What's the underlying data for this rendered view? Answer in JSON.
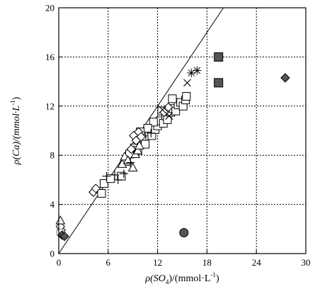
{
  "chart_data": {
    "type": "scatter",
    "title": "",
    "xlabel": {
      "pre": "ρ(SO",
      "sub": "4",
      "post": ")/(mmol·L",
      "sup": "-1",
      "end": ")"
    },
    "ylabel": {
      "pre": "ρ(Ca)/(mmol·L",
      "sup": "-1",
      "end": ")"
    },
    "xlim": [
      0,
      30
    ],
    "ylim": [
      0,
      20
    ],
    "xticks": [
      "0",
      "6",
      "12",
      "18",
      "24",
      "30"
    ],
    "yticks": [
      "0",
      "4",
      "8",
      "12",
      "16",
      "20"
    ],
    "grid": {
      "vertical": [
        6,
        12,
        18,
        24
      ],
      "horizontal": [
        4,
        8,
        12,
        16
      ],
      "style": "dotted"
    },
    "reference_line": {
      "x1": 0,
      "y1": 0,
      "x2": 20,
      "y2": 20
    },
    "marker_colors": {
      "open": "#ffffff",
      "filled": "#555555",
      "line": "#000000",
      "light": "#888888"
    },
    "series": [
      {
        "marker": "square-open",
        "points": [
          [
            5.2,
            4.9
          ],
          [
            5.5,
            5.7
          ],
          [
            6.3,
            6.1
          ],
          [
            7.6,
            6.3
          ],
          [
            8.2,
            7.5
          ],
          [
            8.6,
            8.1
          ],
          [
            9.2,
            8.6
          ],
          [
            9.6,
            8.4
          ],
          [
            10.1,
            9.4
          ],
          [
            10.5,
            8.9
          ],
          [
            11.0,
            9.9
          ],
          [
            11.3,
            9.6
          ],
          [
            11.7,
            10.1
          ],
          [
            12.0,
            10.4
          ],
          [
            12.3,
            10.8
          ],
          [
            12.7,
            10.6
          ],
          [
            13.0,
            11.2
          ],
          [
            13.2,
            10.9
          ],
          [
            13.6,
            11.5
          ],
          [
            13.9,
            11.8
          ],
          [
            14.2,
            11.6
          ],
          [
            14.5,
            12.1
          ],
          [
            14.8,
            12.3
          ],
          [
            15.1,
            12.0
          ],
          [
            15.4,
            12.5
          ],
          [
            13.8,
            12.6
          ],
          [
            15.5,
            12.8
          ],
          [
            12.5,
            11.6
          ],
          [
            11.5,
            10.7
          ],
          [
            10.8,
            10.2
          ],
          [
            9.9,
            9.9
          ]
        ]
      },
      {
        "marker": "diamond-open",
        "points": [
          [
            4.2,
            5.0
          ],
          [
            4.5,
            5.3
          ],
          [
            8.8,
            8.5
          ],
          [
            9.1,
            9.6
          ],
          [
            9.4,
            9.2
          ],
          [
            9.7,
            9.9
          ],
          [
            10.0,
            9.5
          ],
          [
            12.8,
            11.5
          ],
          [
            13.3,
            11.9
          ],
          [
            0.3,
            1.9
          ],
          [
            0.2,
            2.2
          ]
        ]
      },
      {
        "marker": "triangle-open",
        "points": [
          [
            7.7,
            7.3
          ],
          [
            8.0,
            7.9
          ],
          [
            8.4,
            7.6
          ],
          [
            9.0,
            7.0
          ],
          [
            9.3,
            8.1
          ],
          [
            9.6,
            8.4
          ],
          [
            9.8,
            8.8
          ],
          [
            0.2,
            2.7
          ]
        ]
      },
      {
        "marker": "plus",
        "points": [
          [
            5.8,
            6.3
          ],
          [
            6.8,
            6.4
          ],
          [
            7.2,
            6.0
          ],
          [
            7.9,
            6.5
          ],
          [
            8.7,
            7.4
          ],
          [
            11.2,
            9.8
          ]
        ]
      },
      {
        "marker": "cross",
        "points": [
          [
            15.6,
            13.9
          ],
          [
            13.4,
            11.2
          ],
          [
            12.6,
            11.7
          ]
        ]
      },
      {
        "marker": "star",
        "points": [
          [
            16.1,
            14.7
          ],
          [
            16.8,
            14.9
          ]
        ]
      },
      {
        "marker": "circle-open",
        "points": [
          [
            0.2,
            1.7
          ]
        ]
      },
      {
        "marker": "circle-filled",
        "points": [
          [
            15.2,
            1.7
          ]
        ]
      },
      {
        "marker": "square-filled",
        "points": [
          [
            19.4,
            16.0
          ],
          [
            19.4,
            13.9
          ]
        ]
      },
      {
        "marker": "diamond-filled",
        "points": [
          [
            27.5,
            14.3
          ],
          [
            0.4,
            1.5
          ],
          [
            0.7,
            1.4
          ]
        ]
      }
    ]
  }
}
